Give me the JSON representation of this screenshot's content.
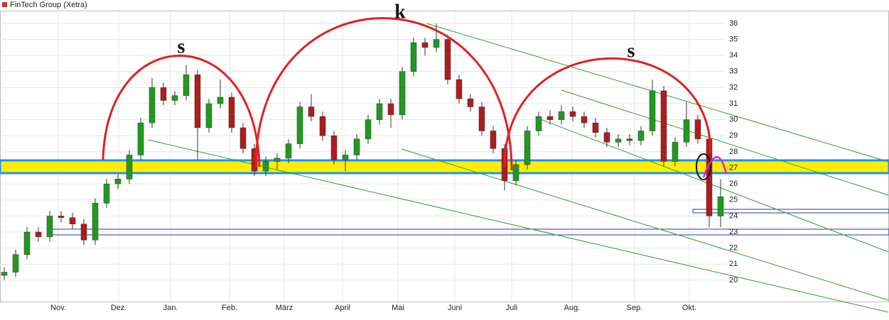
{
  "chart_data": {
    "type": "candlestick",
    "title": "FinTech Group (Xetra)",
    "annotations": [
      "s",
      "k",
      "s"
    ],
    "x": [
      1.5,
      5.5,
      9.5,
      13.5,
      17.5,
      21.5,
      25.5,
      29.5,
      33.5,
      37.5,
      41.5,
      45.5,
      49.5,
      53.5,
      57.5,
      61.5,
      65.5,
      69.5,
      73.5,
      77.5,
      81.5,
      85.5,
      89.5,
      93.5,
      97.5,
      101.5,
      105.5,
      109.5,
      113.5,
      117.5,
      121.5,
      125.5,
      129.5,
      133.5,
      137.5,
      141.5,
      145.5,
      149.5,
      153.5,
      157.5,
      161.5,
      165.5,
      169.5,
      173.5,
      177.5,
      181.5,
      185.5,
      189.5,
      193.5,
      197.5,
      201.5,
      205.5,
      209.5,
      213.5,
      217.5,
      221.5,
      225.5,
      229.5,
      233.5,
      237.5,
      241.5,
      245.5,
      249.5,
      253.5
    ],
    "open": [
      20.3,
      20.5,
      21.6,
      23.0,
      22.7,
      24.0,
      23.9,
      23.5,
      22.5,
      24.8,
      26.0,
      26.3,
      27.8,
      29.8,
      32.0,
      31.2,
      31.5,
      32.8,
      29.5,
      31.0,
      31.4,
      29.5,
      28.2,
      26.8,
      27.4,
      27.6,
      28.5,
      30.8,
      30.2,
      29.0,
      27.5,
      27.8,
      28.8,
      30.0,
      31.0,
      30.3,
      33.0,
      34.8,
      34.5,
      35.0,
      32.5,
      31.3,
      30.8,
      29.3,
      28.2,
      26.2,
      27.2,
      29.3,
      30.2,
      30.0,
      30.5,
      30.2,
      29.8,
      29.2,
      28.6,
      28.8,
      28.7,
      29.3,
      31.8,
      27.4,
      28.6,
      30.0,
      28.8,
      24.0
    ],
    "high": [
      20.8,
      21.9,
      23.3,
      23.3,
      24.3,
      24.3,
      24.2,
      23.8,
      25.1,
      26.3,
      26.6,
      28.1,
      30.1,
      32.6,
      32.3,
      31.8,
      33.4,
      33.1,
      31.3,
      32.5,
      31.7,
      29.8,
      28.5,
      27.7,
      27.9,
      28.8,
      31.1,
      31.6,
      30.5,
      29.3,
      28.1,
      29.1,
      30.3,
      31.3,
      31.3,
      33.3,
      35.1,
      35.1,
      36.0,
      35.3,
      32.8,
      31.6,
      31.1,
      29.6,
      28.5,
      27.5,
      29.6,
      30.5,
      30.6,
      30.9,
      30.8,
      30.5,
      30.1,
      29.5,
      29.1,
      29.1,
      29.6,
      32.5,
      32.1,
      28.9,
      31.1,
      30.3,
      29.1,
      26.3
    ],
    "low": [
      20.0,
      20.2,
      21.3,
      22.4,
      22.4,
      23.6,
      23.2,
      22.2,
      22.2,
      24.5,
      25.7,
      26.0,
      27.5,
      29.5,
      30.9,
      30.9,
      31.2,
      27.5,
      29.2,
      30.7,
      29.2,
      27.9,
      26.5,
      26.5,
      26.9,
      27.3,
      28.2,
      29.9,
      28.7,
      27.2,
      26.8,
      27.5,
      28.5,
      29.7,
      29.5,
      30.0,
      32.7,
      34.0,
      34.2,
      32.2,
      31.0,
      30.5,
      29.0,
      27.9,
      25.6,
      25.9,
      26.9,
      29.0,
      29.7,
      29.7,
      29.9,
      29.5,
      28.9,
      28.3,
      28.3,
      28.4,
      28.4,
      29.0,
      27.1,
      27.1,
      28.3,
      28.5,
      23.3,
      23.3
    ],
    "close": [
      20.5,
      21.6,
      23.0,
      22.7,
      24.0,
      23.9,
      23.5,
      22.5,
      24.8,
      26.0,
      26.3,
      27.8,
      29.8,
      32.0,
      31.2,
      31.5,
      32.8,
      29.5,
      31.0,
      31.4,
      29.5,
      28.2,
      26.8,
      27.4,
      27.6,
      28.5,
      30.8,
      30.2,
      29.0,
      27.5,
      27.8,
      28.8,
      30.0,
      31.0,
      30.3,
      33.0,
      34.8,
      34.5,
      35.0,
      32.5,
      31.3,
      30.8,
      29.3,
      28.2,
      26.2,
      27.2,
      29.3,
      30.2,
      30.0,
      30.5,
      30.2,
      29.8,
      29.2,
      28.6,
      28.8,
      28.7,
      29.3,
      31.8,
      27.4,
      28.6,
      30.0,
      28.8,
      24.0,
      25.2
    ],
    "up_color": "#1f9a1f",
    "down_color": "#b01c1c",
    "xlim": [
      0,
      312.5
    ],
    "xticks": [
      {
        "value": 20.5,
        "label": "Nov."
      },
      {
        "value": 41.75,
        "label": "Dez."
      },
      {
        "value": 60,
        "label": "Jan."
      },
      {
        "value": 80.75,
        "label": "Feb."
      },
      {
        "value": 100,
        "label": "März"
      },
      {
        "value": 120.5,
        "label": "April"
      },
      {
        "value": 140,
        "label": "Mai"
      },
      {
        "value": 160,
        "label": "Juni"
      },
      {
        "value": 180,
        "label": "Juli"
      },
      {
        "value": 201.25,
        "label": "Aug."
      },
      {
        "value": 223.25,
        "label": "Sep."
      },
      {
        "value": 242.5,
        "label": "Okt."
      }
    ],
    "ylim": [
      18.67,
      36.66
    ],
    "yticks": [
      20,
      21,
      22,
      23,
      24,
      25,
      26,
      27,
      28,
      29,
      30,
      31,
      32,
      33,
      34,
      35,
      36
    ],
    "grid": true
  }
}
